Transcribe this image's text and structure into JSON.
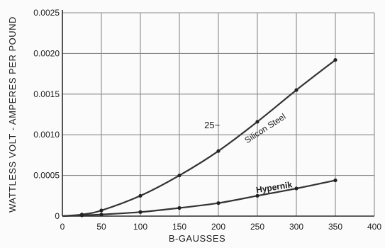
{
  "chart_data": {
    "type": "line",
    "title": "",
    "xlabel": "B-GAUSSES",
    "ylabel": "WATTLESS VOLT - AMPERES PER POUND",
    "xlim": [
      0,
      400
    ],
    "ylim": [
      0,
      0.0025
    ],
    "x_ticks": [
      "0",
      "50",
      "100",
      "150",
      "200",
      "250",
      "300",
      "350",
      "400"
    ],
    "y_ticks": [
      "0",
      "0.0005",
      "0.0010",
      "0.0015",
      "0.0020",
      "0.0025"
    ],
    "grid": true,
    "series": [
      {
        "name": "Silicon Steel",
        "color": "#333333",
        "x": [
          0,
          25,
          50,
          100,
          150,
          200,
          250,
          300,
          350
        ],
        "y": [
          0,
          2e-05,
          7e-05,
          0.00025,
          0.0005,
          0.0008,
          0.00116,
          0.00155,
          0.00192
        ]
      },
      {
        "name": "Hypernik",
        "color": "#333333",
        "x": [
          0,
          25,
          50,
          100,
          150,
          200,
          250,
          300,
          350
        ],
        "y": [
          0,
          1e-05,
          2e-05,
          5e-05,
          0.0001,
          0.00016,
          0.00025,
          0.00034,
          0.00044
        ]
      }
    ],
    "annotations": [
      {
        "text": "25~"
      }
    ]
  }
}
